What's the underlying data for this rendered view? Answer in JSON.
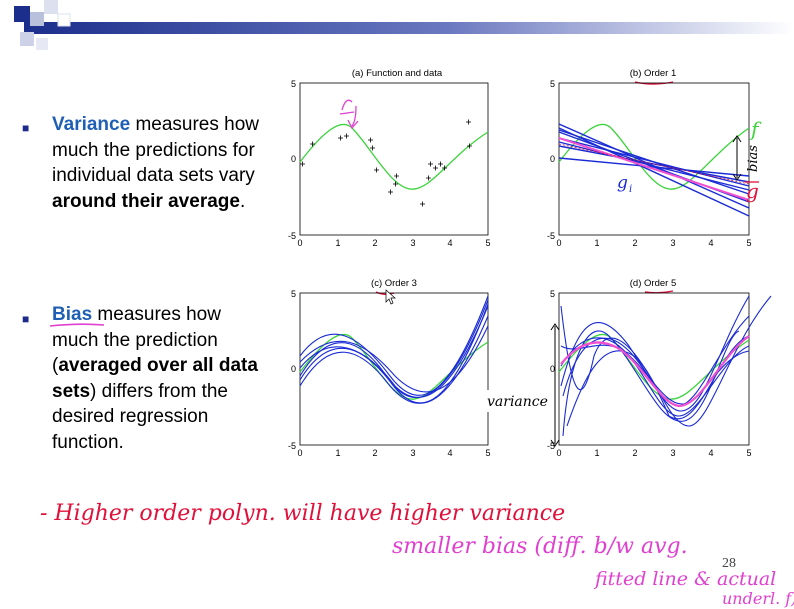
{
  "slide": {
    "page_number": "28",
    "bullets": [
      {
        "term": "Variance",
        "text1": " measures how much the predictions for individual data sets vary ",
        "bold": "around their average",
        "text2": "."
      },
      {
        "term": "Bias",
        "text1": " measures how much the prediction (",
        "bold": "averaged over all data sets",
        "text2": ") differs from the desired regression function."
      }
    ]
  },
  "plots": [
    {
      "title": "(a) Function and data",
      "xticks": [
        "0",
        "1",
        "2",
        "3",
        "4",
        "5"
      ],
      "yticks": [
        "5",
        "0",
        "-5"
      ]
    },
    {
      "title": "(b) Order 1",
      "xticks": [
        "0",
        "1",
        "2",
        "3",
        "4",
        "5"
      ],
      "yticks": [
        "5",
        "0",
        "-5"
      ],
      "labels": {
        "f": "f",
        "g_i": "g",
        "i": "i",
        "g_bar": "g",
        "bias": "bias"
      }
    },
    {
      "title": "(c) Order 3",
      "xticks": [
        "0",
        "1",
        "2",
        "3",
        "4",
        "5"
      ],
      "yticks": [
        "5",
        "0",
        "-5"
      ]
    },
    {
      "title": "(d) Order 5",
      "xticks": [
        "0",
        "1",
        "2",
        "3",
        "4",
        "5"
      ],
      "yticks": [
        "5",
        "0",
        "-5"
      ],
      "labels": {
        "variance": "variance"
      }
    }
  ],
  "handwriting": {
    "line1": "- Higher order polyn. will have higher variance",
    "line2": "smaller bias (diff. b/w avg.",
    "line3": "fitted line & actual",
    "line4": "underl. f)"
  },
  "colors": {
    "data_curve": "#3bd43b",
    "fit": "#1a2bd6",
    "pink": "#f050d0",
    "red_ink": "#e0103a",
    "magenta_ink": "#e040d0",
    "accent_blue": "#1f5fb5"
  }
}
